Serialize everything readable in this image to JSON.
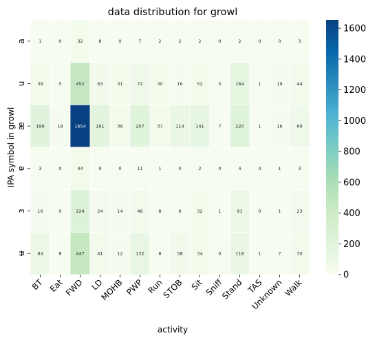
{
  "chart_data": {
    "type": "heatmap",
    "title": "data distribution for growl",
    "xlabel": "activity",
    "ylabel": "IPA symbol in growl",
    "x_categories": [
      "BT",
      "Eat",
      "FWD",
      "LD",
      "MOHB",
      "PWP",
      "Run",
      "STOB",
      "Sit",
      "Sniff",
      "Stand",
      "TAS",
      "Unknown",
      "Walk"
    ],
    "y_categories": [
      "a",
      "u",
      "æ",
      "ɐ",
      "ɜ",
      "ʉ"
    ],
    "values": [
      [
        1,
        0,
        32,
        8,
        0,
        7,
        2,
        2,
        2,
        0,
        2,
        0,
        0,
        3
      ],
      [
        39,
        5,
        452,
        63,
        31,
        72,
        30,
        16,
        52,
        5,
        164,
        1,
        19,
        44
      ],
      [
        199,
        18,
        1654,
        191,
        36,
        207,
        37,
        114,
        141,
        7,
        220,
        1,
        16,
        69
      ],
      [
        3,
        0,
        44,
        9,
        0,
        11,
        1,
        0,
        2,
        0,
        4,
        0,
        1,
        3
      ],
      [
        16,
        0,
        224,
        24,
        14,
        46,
        8,
        9,
        32,
        1,
        91,
        0,
        1,
        23
      ],
      [
        84,
        8,
        447,
        41,
        12,
        132,
        8,
        58,
        34,
        0,
        118,
        1,
        7,
        30
      ]
    ],
    "colormap": "GnBu",
    "color_range": [
      0,
      1654
    ],
    "colorbar_ticks": [
      0,
      200,
      400,
      600,
      800,
      1000,
      1200,
      1400,
      1600
    ],
    "annotations": true,
    "grid": false
  }
}
